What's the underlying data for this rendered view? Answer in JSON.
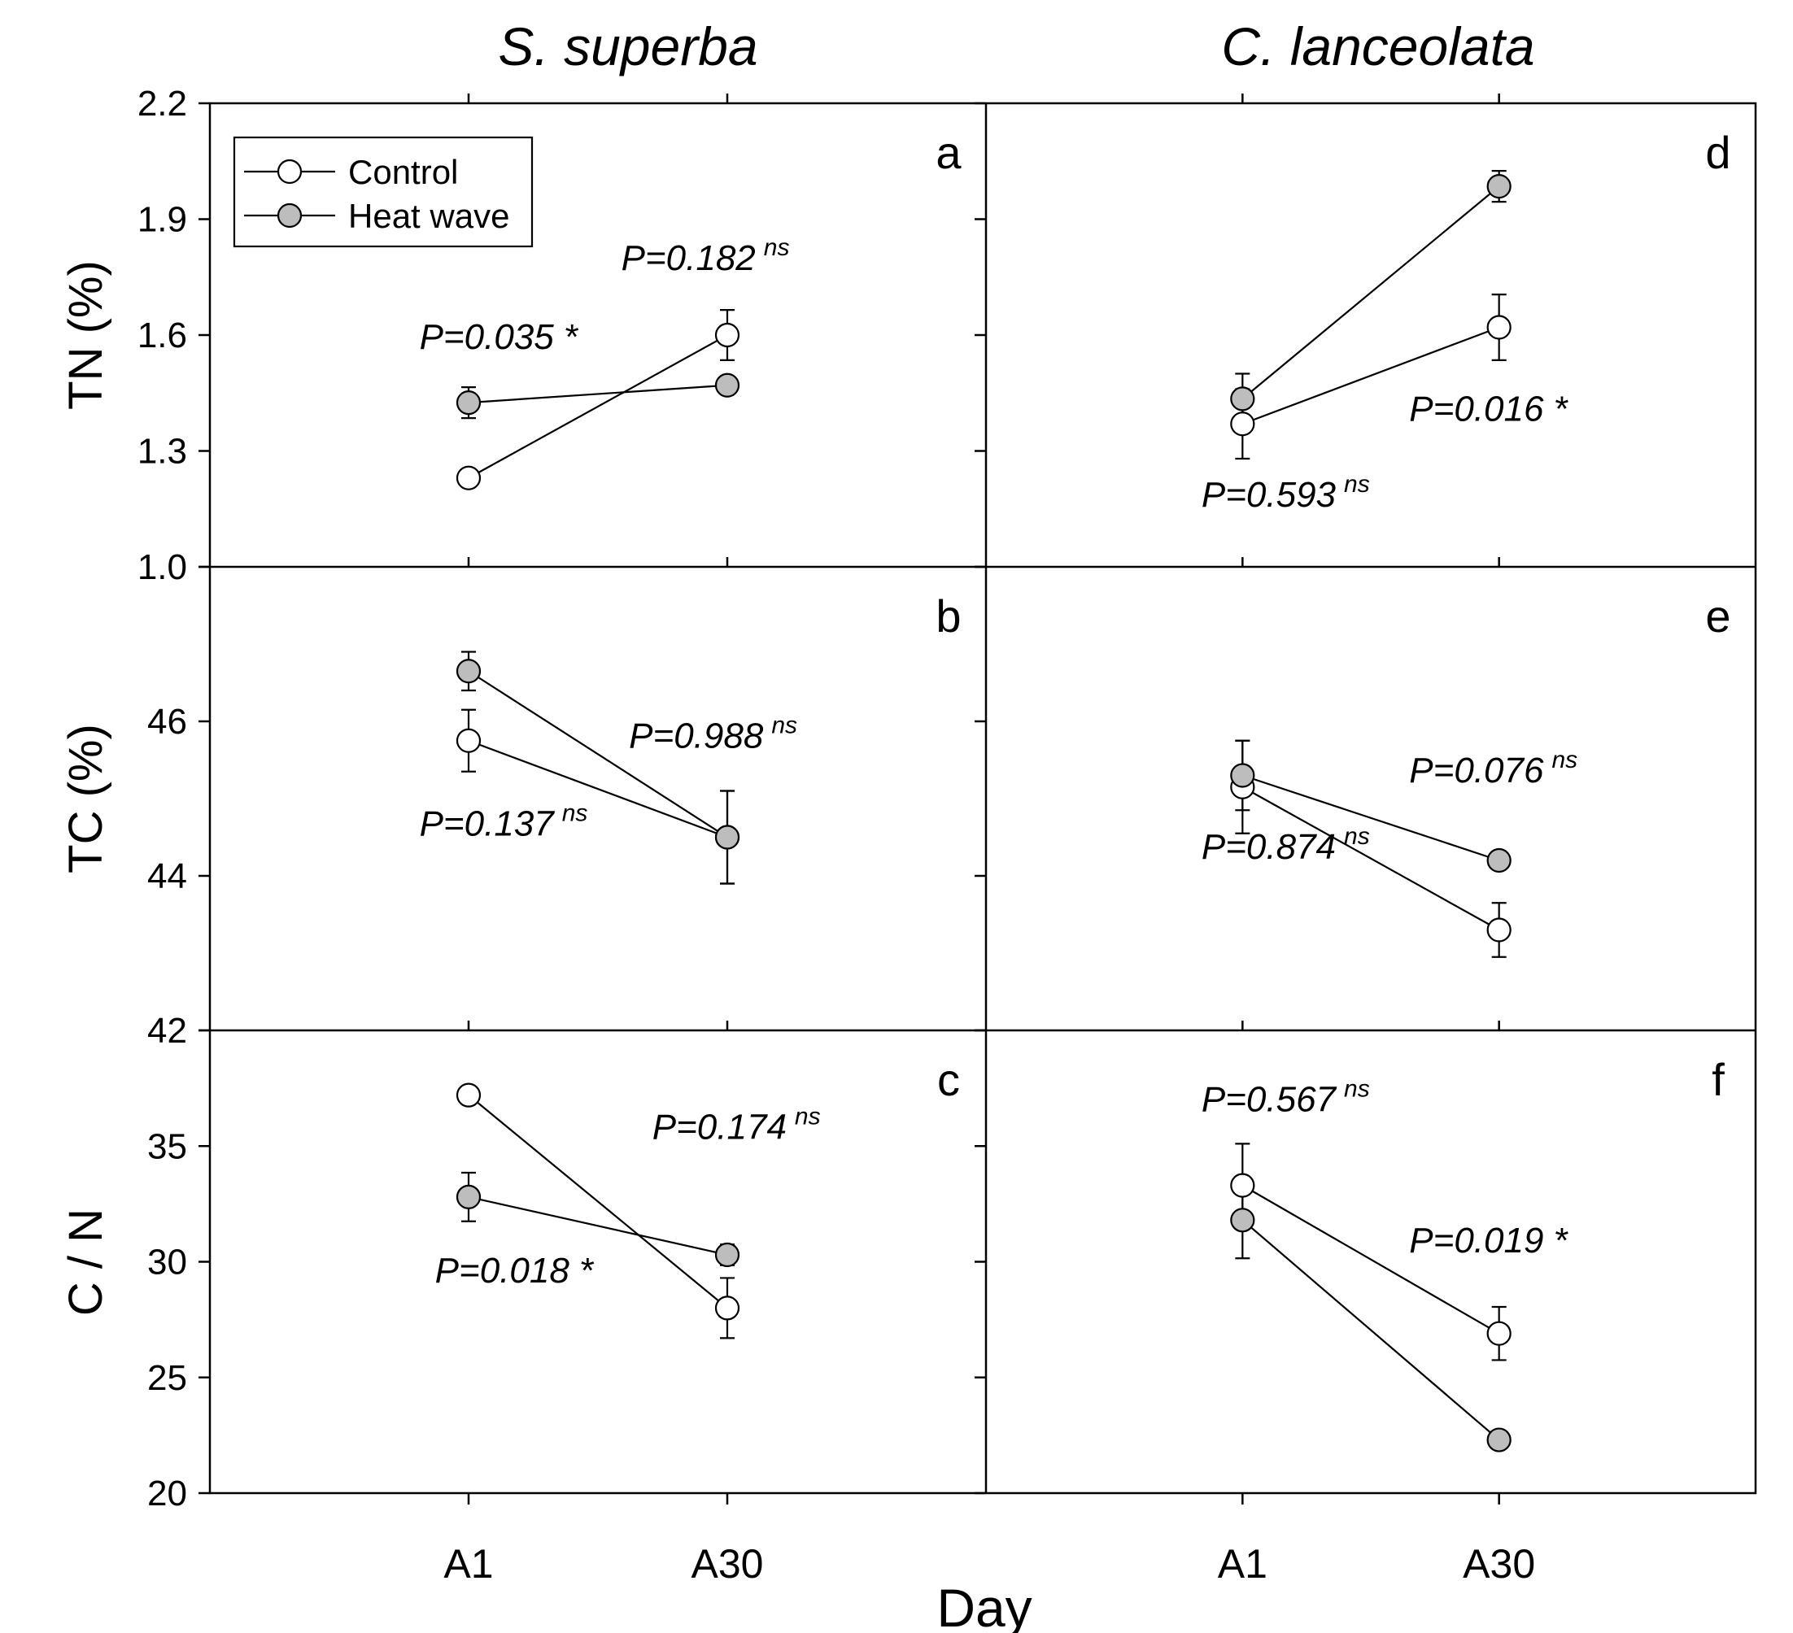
{
  "figure": {
    "xlabel": "Day",
    "colors": {
      "control_fill": "#ffffff",
      "heatwave_fill": "#bdbdbd",
      "line": "#000000"
    }
  },
  "chart_data": [
    {
      "type": "line",
      "panel": "a",
      "column_title": "S. superba",
      "ylabel": "TN (%)",
      "ylim": [
        1.0,
        2.2
      ],
      "yticks": [
        "1.0",
        "1.3",
        "1.6",
        "1.9",
        "2.2"
      ],
      "categories": [
        "A1",
        "A30"
      ],
      "legend": [
        "Control",
        "Heat wave"
      ],
      "legend_position": "top-left",
      "series": [
        {
          "name": "Control",
          "values": [
            1.23,
            1.6
          ],
          "errors": [
            0.0,
            0.065
          ]
        },
        {
          "name": "Heat wave",
          "values": [
            1.425,
            1.47
          ],
          "errors": [
            0.04,
            0.0
          ]
        }
      ],
      "annotations": [
        {
          "text": "P=0.035",
          "mark": "*"
        },
        {
          "text": "P=0.182",
          "mark": "ns"
        }
      ]
    },
    {
      "type": "line",
      "panel": "b",
      "ylabel": "TC (%)",
      "ylim": [
        42,
        48
      ],
      "yticks": [
        "42",
        "44",
        "46"
      ],
      "categories": [
        "A1",
        "A30"
      ],
      "series": [
        {
          "name": "Control",
          "values": [
            45.75,
            44.5
          ],
          "errors": [
            0.4,
            0.6
          ]
        },
        {
          "name": "Heat wave",
          "values": [
            46.65,
            44.5
          ],
          "errors": [
            0.25,
            0.6
          ]
        }
      ],
      "annotations": [
        {
          "text": "P=0.137",
          "mark": "ns"
        },
        {
          "text": "P=0.988",
          "mark": "ns"
        }
      ]
    },
    {
      "type": "line",
      "panel": "c",
      "ylabel": "C / N",
      "ylim": [
        20,
        40
      ],
      "yticks": [
        "20",
        "25",
        "30",
        "35"
      ],
      "categories": [
        "A1",
        "A30"
      ],
      "series": [
        {
          "name": "Control",
          "values": [
            37.2,
            28.0
          ],
          "errors": [
            0.0,
            1.3
          ]
        },
        {
          "name": "Heat wave",
          "values": [
            32.8,
            30.3
          ],
          "errors": [
            1.05,
            0.45
          ]
        }
      ],
      "annotations": [
        {
          "text": "P=0.018",
          "mark": "*"
        },
        {
          "text": "P=0.174",
          "mark": "ns"
        }
      ]
    },
    {
      "type": "line",
      "panel": "d",
      "column_title": "C. lanceolata",
      "ylim": [
        1.0,
        2.2
      ],
      "categories": [
        "A1",
        "A30"
      ],
      "series": [
        {
          "name": "Control",
          "values": [
            1.37,
            1.62
          ],
          "errors": [
            0.09,
            0.085
          ]
        },
        {
          "name": "Heat wave",
          "values": [
            1.435,
            1.985
          ],
          "errors": [
            0.065,
            0.04
          ]
        }
      ],
      "annotations": [
        {
          "text": "P=0.593",
          "mark": "ns"
        },
        {
          "text": "P=0.016",
          "mark": "*"
        }
      ]
    },
    {
      "type": "line",
      "panel": "e",
      "ylim": [
        42,
        48
      ],
      "categories": [
        "A1",
        "A30"
      ],
      "series": [
        {
          "name": "Control",
          "values": [
            45.15,
            43.3
          ],
          "errors": [
            0.6,
            0.35
          ]
        },
        {
          "name": "Heat wave",
          "values": [
            45.3,
            44.2
          ],
          "errors": [
            0.45,
            0.1
          ]
        }
      ],
      "annotations": [
        {
          "text": "P=0.874",
          "mark": "ns"
        },
        {
          "text": "P=0.076",
          "mark": "ns"
        }
      ]
    },
    {
      "type": "line",
      "panel": "f",
      "ylim": [
        20,
        40
      ],
      "categories": [
        "A1",
        "A30"
      ],
      "series": [
        {
          "name": "Control",
          "values": [
            33.3,
            26.9
          ],
          "errors": [
            1.8,
            1.15
          ]
        },
        {
          "name": "Heat wave",
          "values": [
            31.8,
            22.3
          ],
          "errors": [
            1.65,
            0.0
          ]
        }
      ],
      "annotations": [
        {
          "text": "P=0.567",
          "mark": "ns"
        },
        {
          "text": "P=0.019",
          "mark": "*"
        }
      ]
    }
  ]
}
